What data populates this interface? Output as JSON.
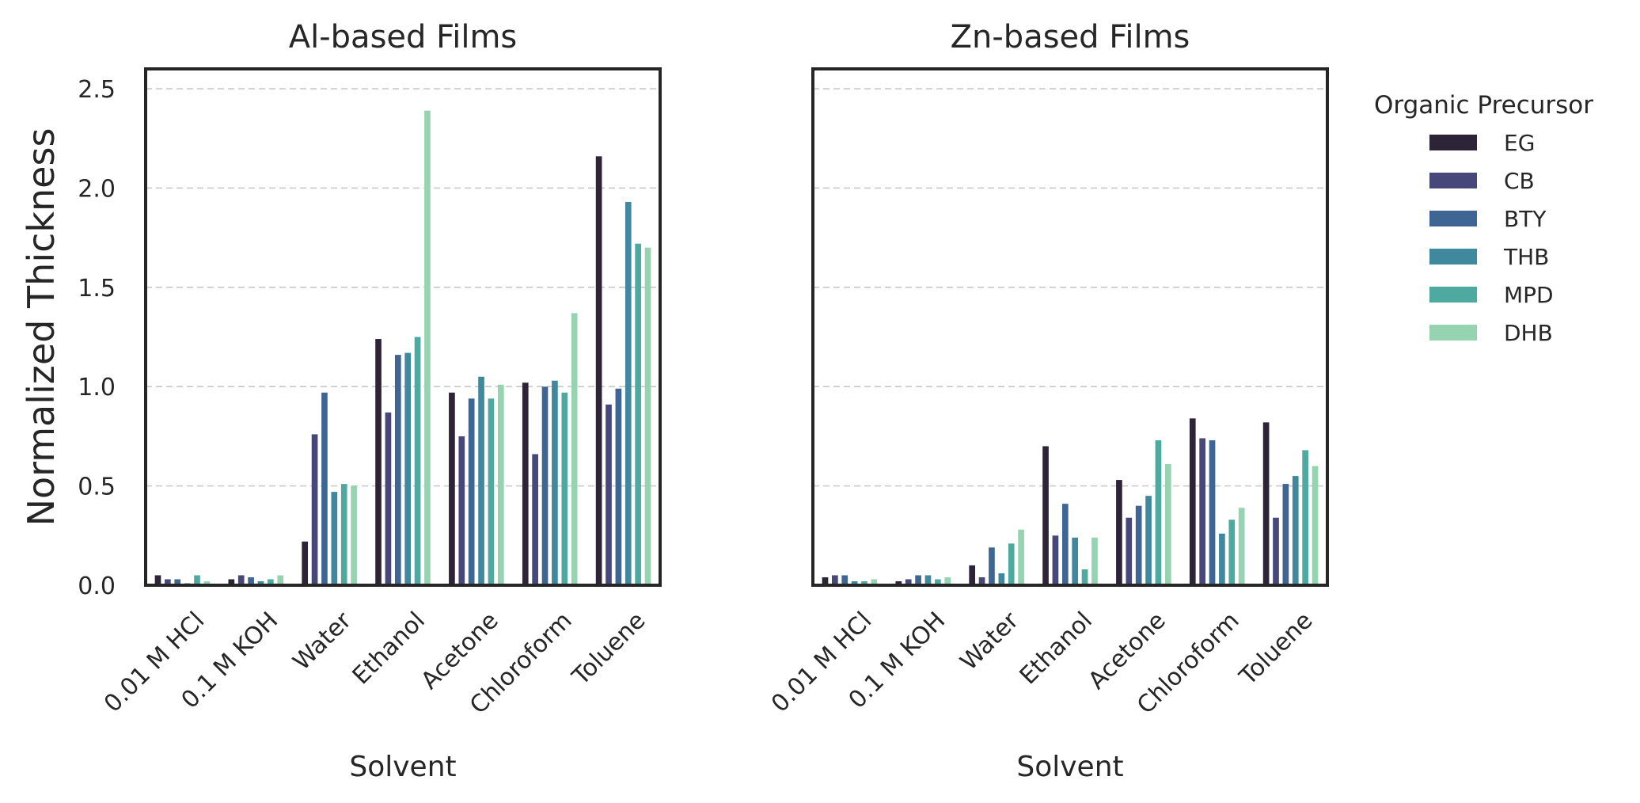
{
  "chart_data": [
    {
      "type": "bar",
      "title": "Al-based Films",
      "xlabel": "Solvent",
      "ylabel": "Normalized Thickness",
      "ylim": [
        0,
        2.6
      ],
      "yticks": [
        "0.0",
        "0.5",
        "1.0",
        "1.5",
        "2.0",
        "2.5"
      ],
      "grid": "horizontal dashed",
      "categories": [
        "0.01 M HCl",
        "0.1 M KOH",
        "Water",
        "Ethanol",
        "Acetone",
        "Chloroform",
        "Toluene"
      ],
      "series": [
        {
          "name": "EG",
          "values": [
            0.05,
            0.03,
            0.22,
            1.24,
            0.97,
            1.02,
            2.16
          ]
        },
        {
          "name": "CB",
          "values": [
            0.03,
            0.05,
            0.76,
            0.87,
            0.75,
            0.66,
            0.91
          ]
        },
        {
          "name": "BTY",
          "values": [
            0.03,
            0.04,
            0.97,
            1.16,
            0.94,
            1.0,
            0.99
          ]
        },
        {
          "name": "THB",
          "values": [
            0.01,
            0.02,
            0.47,
            1.17,
            1.05,
            1.03,
            1.93
          ]
        },
        {
          "name": "MPD",
          "values": [
            0.05,
            0.03,
            0.51,
            1.25,
            0.94,
            0.97,
            1.72
          ]
        },
        {
          "name": "DHB",
          "values": [
            0.02,
            0.05,
            0.5,
            2.39,
            1.01,
            1.37,
            1.7
          ]
        }
      ]
    },
    {
      "type": "bar",
      "title": "Zn-based Films",
      "xlabel": "Solvent",
      "ylabel": "",
      "ylim": [
        0,
        2.6
      ],
      "grid": "horizontal dashed",
      "categories": [
        "0.01 M HCl",
        "0.1 M KOH",
        "Water",
        "Ethanol",
        "Acetone",
        "Chloroform",
        "Toluene"
      ],
      "series": [
        {
          "name": "EG",
          "values": [
            0.04,
            0.02,
            0.1,
            0.7,
            0.53,
            0.84,
            0.82
          ]
        },
        {
          "name": "CB",
          "values": [
            0.05,
            0.03,
            0.04,
            0.25,
            0.34,
            0.74,
            0.34
          ]
        },
        {
          "name": "BTY",
          "values": [
            0.05,
            0.05,
            0.19,
            0.41,
            0.4,
            0.73,
            0.51
          ]
        },
        {
          "name": "THB",
          "values": [
            0.02,
            0.05,
            0.06,
            0.24,
            0.45,
            0.26,
            0.55
          ]
        },
        {
          "name": "MPD",
          "values": [
            0.02,
            0.03,
            0.21,
            0.08,
            0.73,
            0.33,
            0.68
          ]
        },
        {
          "name": "DHB",
          "values": [
            0.03,
            0.04,
            0.28,
            0.24,
            0.61,
            0.39,
            0.6
          ]
        }
      ]
    }
  ],
  "legend": {
    "title": "Organic Precursor",
    "placement": "right, outside",
    "items": [
      {
        "label": "EG",
        "color": "#2d2438"
      },
      {
        "label": "CB",
        "color": "#47477a"
      },
      {
        "label": "BTY",
        "color": "#3f6594"
      },
      {
        "label": "THB",
        "color": "#3f889e"
      },
      {
        "label": "MPD",
        "color": "#4eaaa0"
      },
      {
        "label": "DHB",
        "color": "#96d3b1"
      }
    ]
  }
}
